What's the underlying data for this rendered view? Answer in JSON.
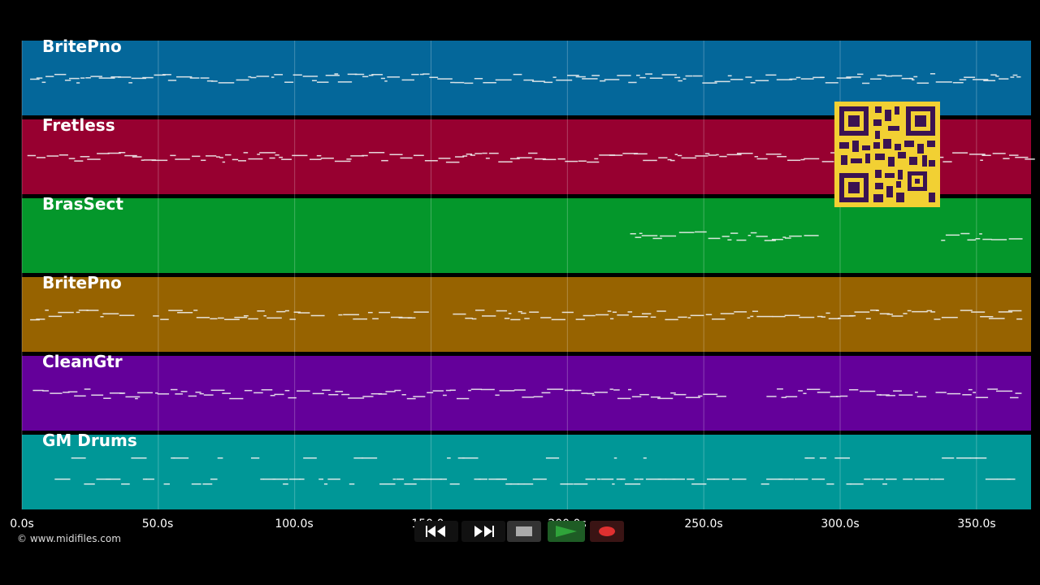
{
  "copyright": "© www.midifiles.com",
  "tracks": [
    {
      "name": "BritePno",
      "color": "#04679a"
    },
    {
      "name": "Fretless",
      "color": "#970030"
    },
    {
      "name": "BrasSect",
      "color": "#04972b"
    },
    {
      "name": "BritePno",
      "color": "#976300"
    },
    {
      "name": "CleanGtr",
      "color": "#64009a"
    },
    {
      "name": "GM Drums",
      "color": "#009797"
    }
  ],
  "time_axis": {
    "max_seconds": 370,
    "ticks": [
      {
        "value": 0,
        "label": "0.0s"
      },
      {
        "value": 50,
        "label": "50.0s"
      },
      {
        "value": 100,
        "label": "100.0s"
      },
      {
        "value": 150,
        "label": "150.0s"
      },
      {
        "value": 200,
        "label": "200.0s"
      },
      {
        "value": 250,
        "label": "250.0s"
      },
      {
        "value": 300,
        "label": "300.0s"
      },
      {
        "value": 350,
        "label": "350.0s"
      }
    ]
  },
  "transport": {
    "rewind_icon": "rewind-icon",
    "fast_forward_icon": "fast-forward-icon",
    "stop_icon": "stop-icon",
    "play_icon": "play-icon",
    "record_icon": "record-icon",
    "record_color": "#e03030",
    "play_color": "#2fa33a"
  },
  "qr_code": {
    "color": "#f2d033"
  }
}
